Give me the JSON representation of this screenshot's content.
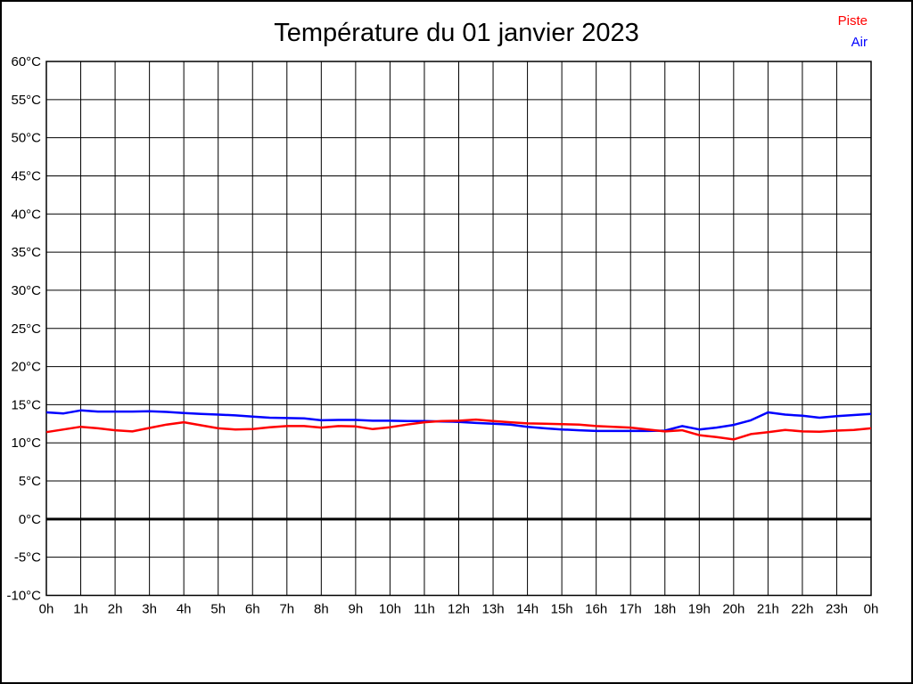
{
  "title": "Température du 01 janvier 2023",
  "legend": {
    "position": "top-right",
    "items": [
      {
        "label": "Piste",
        "color": "#ff0000"
      },
      {
        "label": "Air",
        "color": "#0000ff"
      }
    ]
  },
  "chart_data": {
    "type": "line",
    "title": "Température du 01 janvier 2023",
    "xlabel": "",
    "ylabel": "",
    "x_unit": "hour of day",
    "y_unit": "°C",
    "xlim": [
      0,
      24
    ],
    "ylim": [
      -10,
      60
    ],
    "grid": true,
    "grid_color": "#000000",
    "zero_line": {
      "value": 0,
      "bold": true
    },
    "x_tick_hours": [
      0,
      1,
      2,
      3,
      4,
      5,
      6,
      7,
      8,
      9,
      10,
      11,
      12,
      13,
      14,
      15,
      16,
      17,
      18,
      19,
      20,
      21,
      22,
      23,
      24
    ],
    "x_tick_labels": [
      "0h",
      "1h",
      "2h",
      "3h",
      "4h",
      "5h",
      "6h",
      "7h",
      "8h",
      "9h",
      "10h",
      "11h",
      "12h",
      "13h",
      "14h",
      "15h",
      "16h",
      "17h",
      "18h",
      "19h",
      "20h",
      "21h",
      "22h",
      "23h",
      "0h"
    ],
    "y_ticks": [
      60,
      55,
      50,
      45,
      40,
      35,
      30,
      25,
      20,
      15,
      10,
      5,
      0,
      -5,
      -10
    ],
    "y_tick_labels": [
      "60°C",
      "55°C",
      "50°C",
      "45°C",
      "40°C",
      "35°C",
      "30°C",
      "25°C",
      "20°C",
      "15°C",
      "10°C",
      "5°C",
      "0°C",
      "-5°C",
      "-10°C"
    ],
    "x": [
      0,
      0.5,
      1,
      1.5,
      2,
      2.5,
      3,
      3.5,
      4,
      4.5,
      5,
      5.5,
      6,
      6.5,
      7,
      7.5,
      8,
      8.5,
      9,
      9.5,
      10,
      10.5,
      11,
      11.5,
      12,
      12.5,
      13,
      13.5,
      14,
      14.5,
      15,
      15.5,
      16,
      16.5,
      17,
      17.5,
      18,
      18.5,
      19,
      19.5,
      20,
      20.5,
      21,
      21.5,
      22,
      22.5,
      23,
      23.5,
      24
    ],
    "series": [
      {
        "name": "Air",
        "color": "#0000ff",
        "values": [
          14.0,
          13.85,
          14.25,
          14.1,
          14.1,
          14.1,
          14.15,
          14.05,
          13.9,
          13.8,
          13.7,
          13.6,
          13.45,
          13.3,
          13.25,
          13.2,
          12.95,
          13.0,
          13.0,
          12.9,
          12.9,
          12.85,
          12.85,
          12.8,
          12.75,
          12.6,
          12.5,
          12.4,
          12.1,
          11.9,
          11.75,
          11.65,
          11.55,
          11.55,
          11.55,
          11.55,
          11.6,
          12.2,
          11.75,
          12.0,
          12.35,
          12.95,
          14.0,
          13.7,
          13.55,
          13.3,
          13.5,
          13.65,
          13.8
        ]
      },
      {
        "name": "Piste",
        "color": "#ff0000",
        "values": [
          11.4,
          11.75,
          12.1,
          11.9,
          11.65,
          11.5,
          11.95,
          12.4,
          12.7,
          12.3,
          11.9,
          11.75,
          11.8,
          12.05,
          12.2,
          12.2,
          12.0,
          12.2,
          12.15,
          11.8,
          12.05,
          12.4,
          12.7,
          12.85,
          12.9,
          13.05,
          12.85,
          12.7,
          12.55,
          12.5,
          12.45,
          12.4,
          12.2,
          12.1,
          12.0,
          11.75,
          11.5,
          11.65,
          11.0,
          10.75,
          10.45,
          11.15,
          11.4,
          11.7,
          11.5,
          11.45,
          11.6,
          11.7,
          11.9
        ]
      }
    ],
    "legend_entries": [
      "Piste",
      "Air"
    ],
    "legend_position": "top-right"
  }
}
